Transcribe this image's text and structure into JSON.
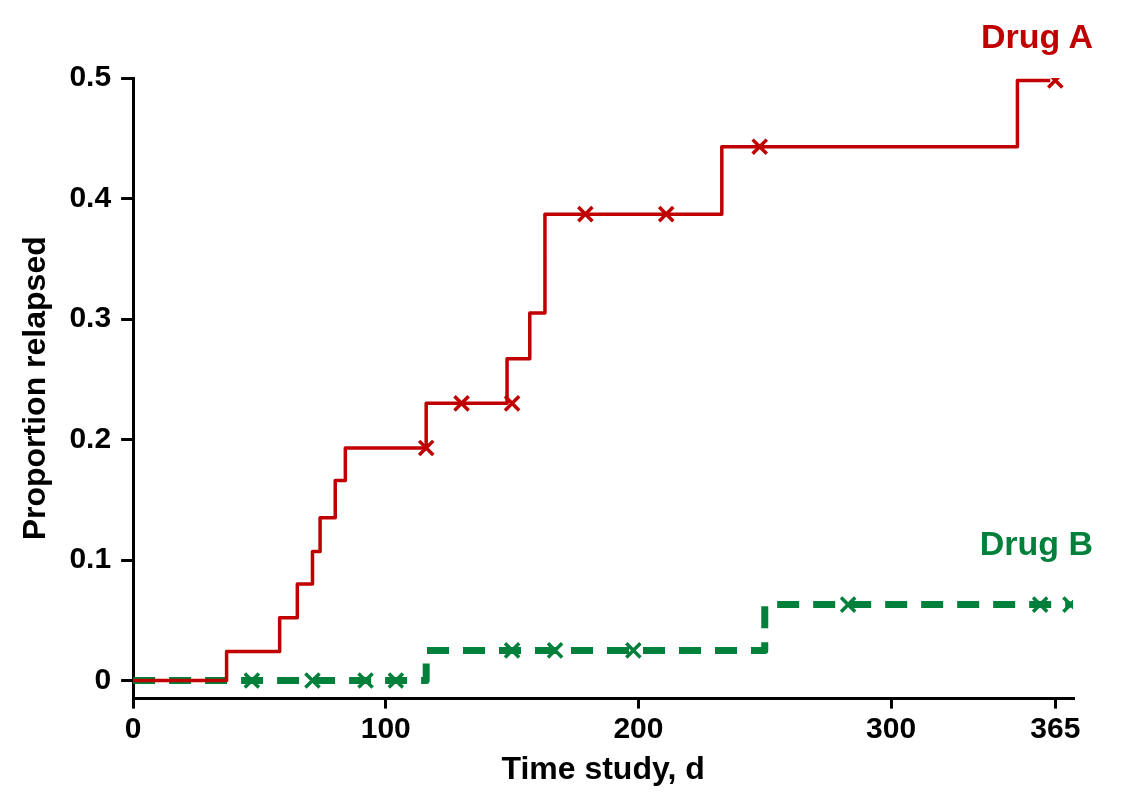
{
  "chart_data": {
    "type": "step",
    "xlabel": "Time study, d",
    "ylabel": "Proportion relapsed",
    "xlim": [
      0,
      372
    ],
    "xticks": [
      0,
      100,
      200,
      300,
      365
    ],
    "ylim": [
      -0.015,
      0.5
    ],
    "yticks": [
      0,
      0.1,
      0.2,
      0.3,
      0.4,
      0.5
    ],
    "grid": false,
    "legend": false,
    "series": [
      {
        "name": "Drug A",
        "color": "#c00000",
        "line_style": "solid",
        "marker": "none",
        "x": [
          0,
          37,
          58,
          65,
          71,
          74,
          80,
          84,
          116,
          148,
          157,
          163,
          233,
          350,
          363
        ],
        "values": [
          0,
          0.024,
          0.052,
          0.08,
          0.107,
          0.135,
          0.166,
          0.193,
          0.23,
          0.267,
          0.305,
          0.387,
          0.443,
          0.498,
          0.498
        ]
      },
      {
        "name": "Drug B",
        "color": "#00803a",
        "line_style": "dashed",
        "marker": "none",
        "x": [
          0,
          116,
          250,
          371
        ],
        "values": [
          0,
          0.025,
          0.063,
          0.063
        ]
      },
      {
        "type": "scatter",
        "color": "#c00000",
        "marker": "cross",
        "x": [
          116,
          130,
          150,
          179,
          211,
          248,
          365
        ],
        "values": [
          0.193,
          0.23,
          0.23,
          0.387,
          0.387,
          0.443,
          0.498
        ]
      },
      {
        "type": "scatter",
        "color": "#00803a",
        "marker": "cross",
        "x": [
          47,
          71,
          92,
          104,
          150,
          167,
          198,
          283,
          359,
          371
        ],
        "values": [
          0,
          0,
          0,
          0,
          0.025,
          0.025,
          0.025,
          0.063,
          0.063,
          0.063
        ]
      }
    ]
  }
}
